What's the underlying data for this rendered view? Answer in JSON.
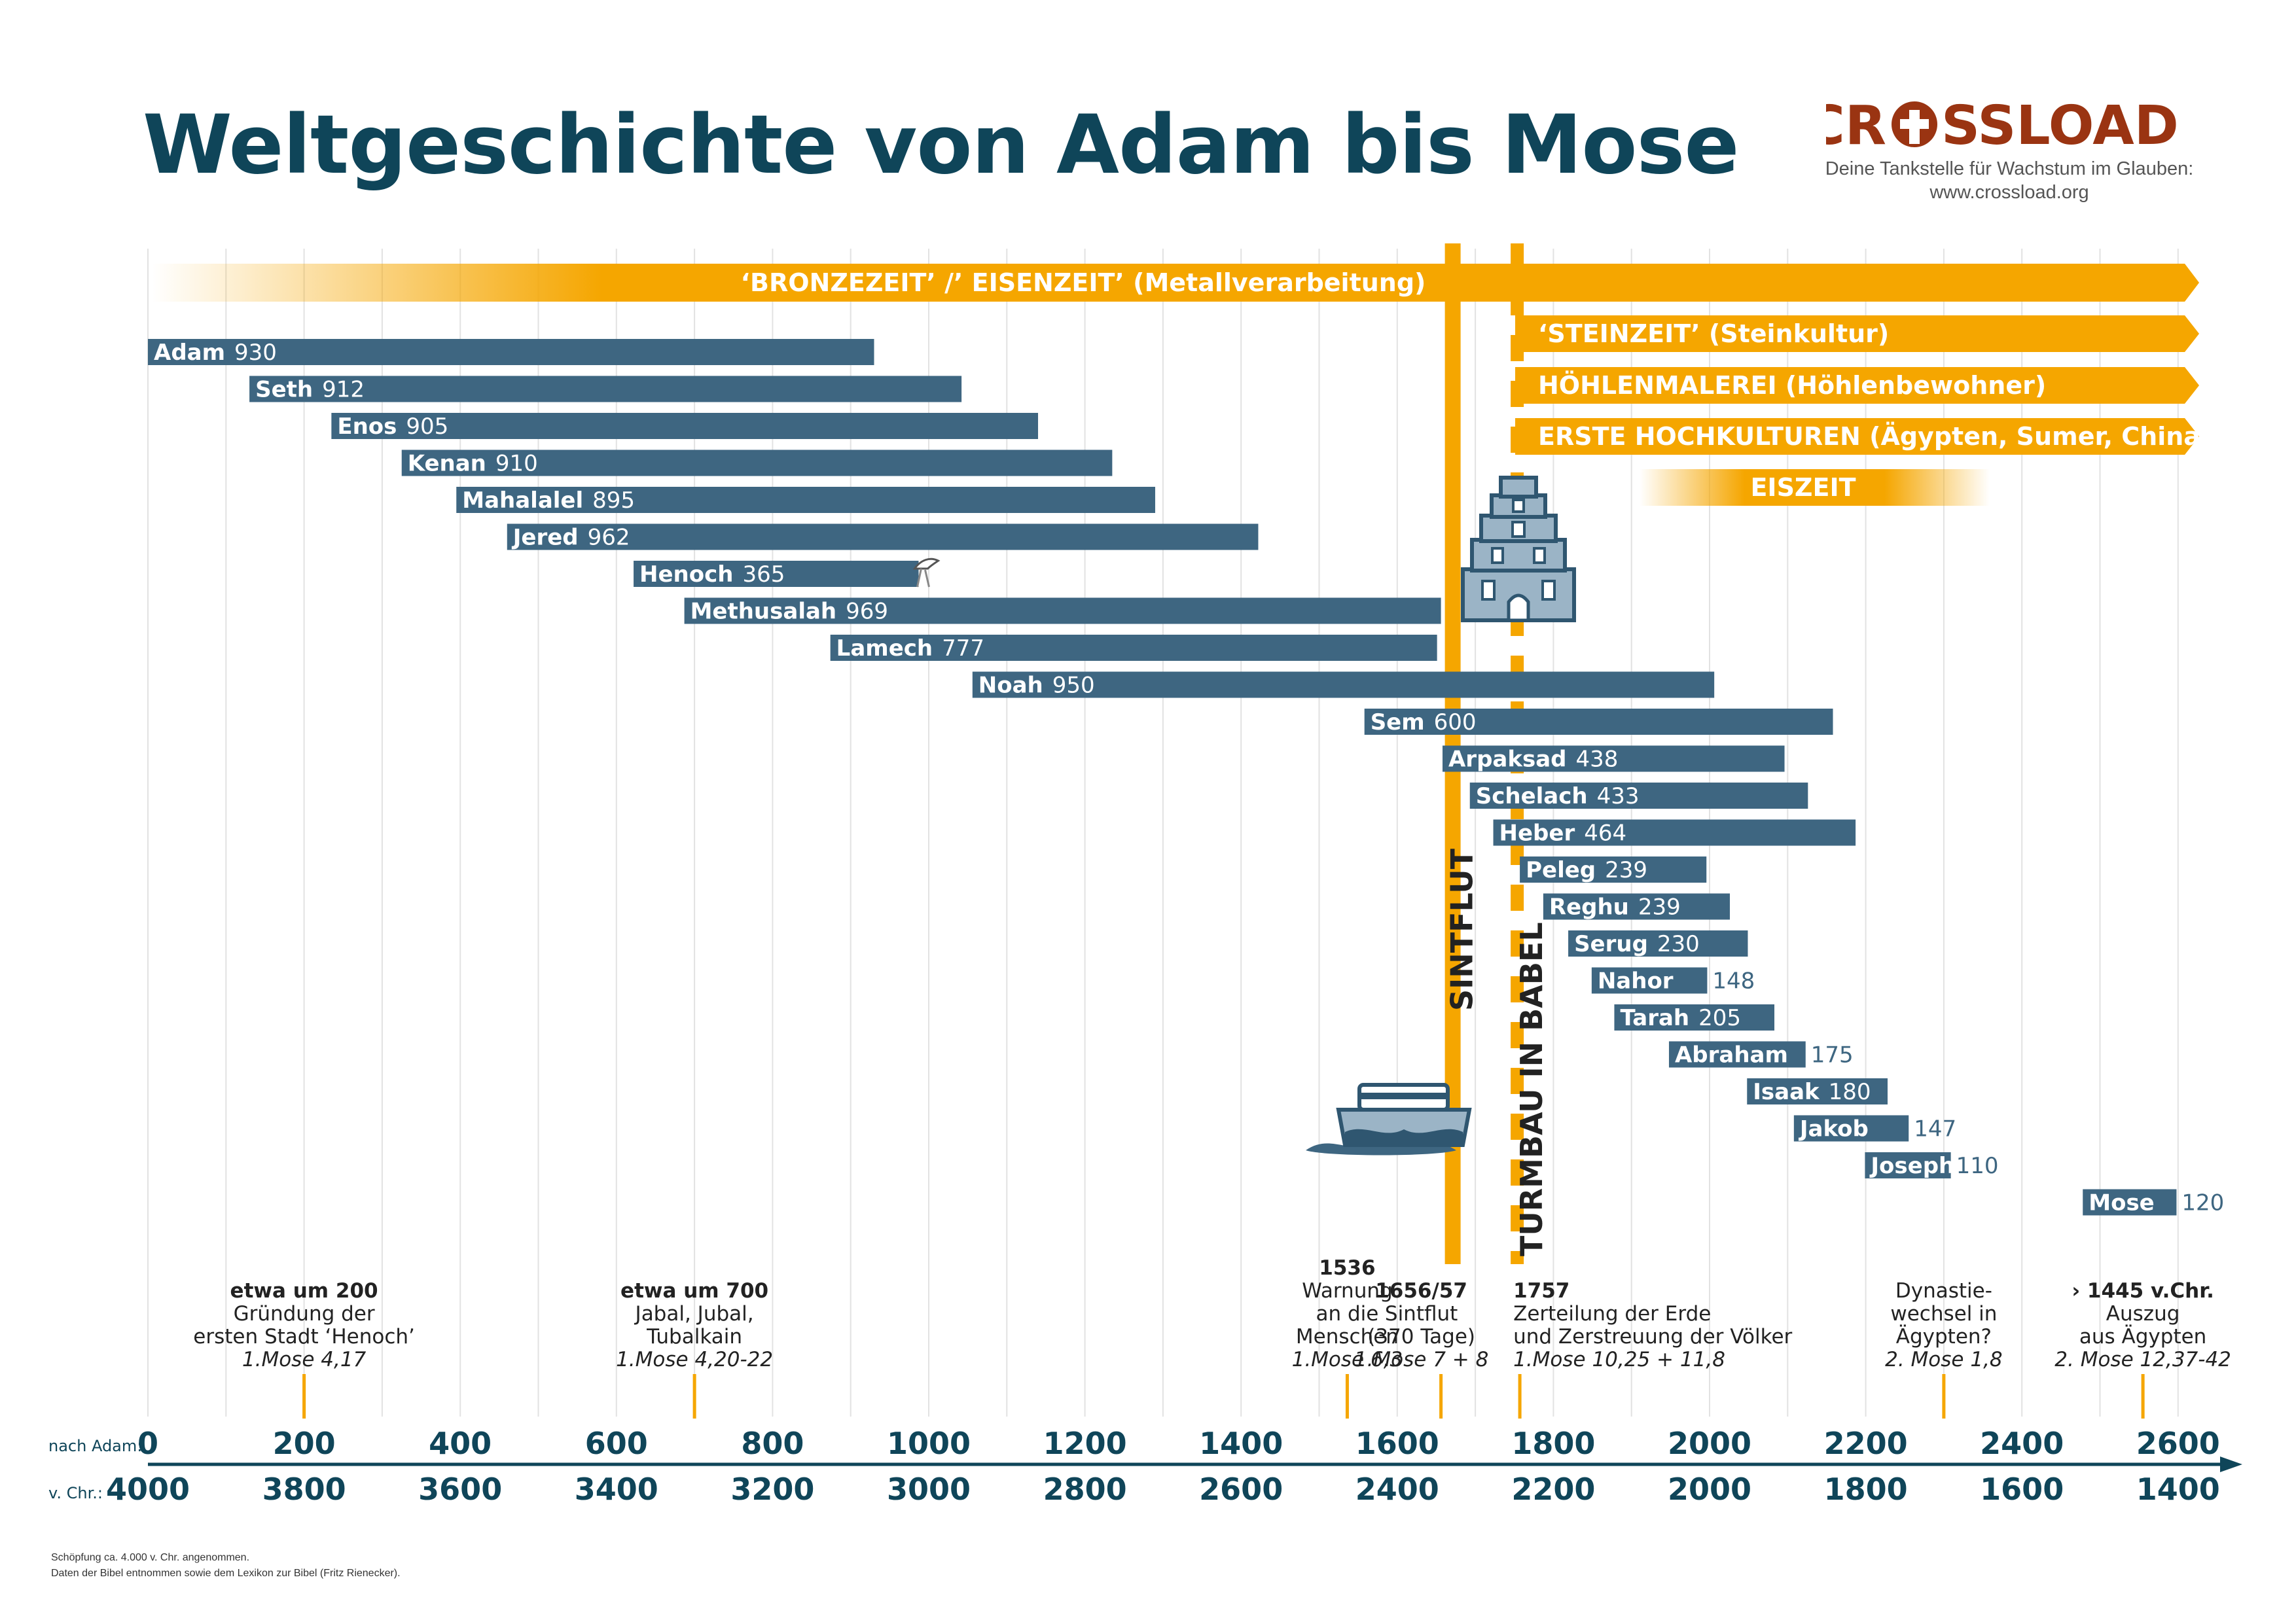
{
  "title": "Weltgeschichte von Adam bis Mose",
  "brand": {
    "name_left": "CR",
    "name_right": "SSLOAD",
    "tagline": "Deine Tankstelle für Wachstum im Glauben:",
    "url": "www.crossload.org",
    "color": "#9a3412"
  },
  "colors": {
    "bar": "#3e6681",
    "accent": "#f5a600",
    "text": "#0f4559",
    "grid": "#e2e2e2"
  },
  "icons": [
    "ship-icon",
    "tower-icon",
    "dove-icon"
  ],
  "chart_data": {
    "type": "bar",
    "orientation": "horizontal",
    "xlabel_primary": "nach Adam:",
    "xlabel_secondary": "v. Chr.:",
    "xlim": [
      0,
      2650
    ],
    "xticks_adam": [
      "0",
      "200",
      "400",
      "600",
      "800",
      "1000",
      "1200",
      "1400",
      "1600",
      "1800",
      "2000",
      "2200",
      "2400",
      "2600"
    ],
    "xticks_bc": [
      "4000",
      "3800",
      "3600",
      "3400",
      "3200",
      "3000",
      "2800",
      "2600",
      "2400",
      "2200",
      "2000",
      "1800",
      "1600",
      "1400"
    ],
    "grid": true,
    "series": [
      {
        "name": "Adam",
        "start": 0,
        "lifespan": 930,
        "label": "930"
      },
      {
        "name": "Seth",
        "start": 130,
        "lifespan": 912,
        "label": "912"
      },
      {
        "name": "Enos",
        "start": 235,
        "lifespan": 905,
        "label": "905"
      },
      {
        "name": "Kenan",
        "start": 325,
        "lifespan": 910,
        "label": "910"
      },
      {
        "name": "Mahalalel",
        "start": 395,
        "lifespan": 895,
        "label": "895"
      },
      {
        "name": "Jered",
        "start": 460,
        "lifespan": 962,
        "label": "962"
      },
      {
        "name": "Henoch",
        "start": 622,
        "lifespan": 365,
        "label": "365"
      },
      {
        "name": "Methusalah",
        "start": 687,
        "lifespan": 969,
        "label": "969"
      },
      {
        "name": "Lamech",
        "start": 874,
        "lifespan": 777,
        "label": "777"
      },
      {
        "name": "Noah",
        "start": 1056,
        "lifespan": 950,
        "label": "950"
      },
      {
        "name": "Sem",
        "start": 1558,
        "lifespan": 600,
        "label": "600"
      },
      {
        "name": "Arpaksad",
        "start": 1658,
        "lifespan": 438,
        "label": "438"
      },
      {
        "name": "Schelach",
        "start": 1693,
        "lifespan": 433,
        "label": "433"
      },
      {
        "name": "Heber",
        "start": 1723,
        "lifespan": 464,
        "label": "464"
      },
      {
        "name": "Peleg",
        "start": 1757,
        "lifespan": 239,
        "label": "239"
      },
      {
        "name": "Reghu",
        "start": 1787,
        "lifespan": 239,
        "label": "239"
      },
      {
        "name": "Serug",
        "start": 1819,
        "lifespan": 230,
        "label": "230"
      },
      {
        "name": "Nahor",
        "start": 1849,
        "lifespan": 148,
        "label": "148"
      },
      {
        "name": "Tarah",
        "start": 1878,
        "lifespan": 205,
        "label": "205"
      },
      {
        "name": "Abraham",
        "start": 1948,
        "lifespan": 175,
        "label": "175"
      },
      {
        "name": "Isaak",
        "start": 2048,
        "lifespan": 180,
        "label": "180"
      },
      {
        "name": "Jakob",
        "start": 2108,
        "lifespan": 147,
        "label": "147"
      },
      {
        "name": "Joseph",
        "start": 2199,
        "lifespan": 110,
        "label": "110"
      },
      {
        "name": "Mose",
        "start": 2478,
        "lifespan": 120,
        "label": "120"
      }
    ],
    "eras": [
      {
        "label": "‘BRONZEZEIT’ /’ EISENZEIT’ (Metallverarbeitung)",
        "start": 0,
        "end": 2600
      },
      {
        "label": "‘STEINZEIT’ (Steinkultur)",
        "start": 1757,
        "end": 2600
      },
      {
        "label": "HÖHLENMALEREI (Höhlenbewohner)",
        "start": 1757,
        "end": 2600
      },
      {
        "label": "ERSTE HOCHKULTUREN (Ägypten, Sumer, China)",
        "start": 1757,
        "end": 2600
      },
      {
        "label": "EISZEIT",
        "start": 1920,
        "end": 2350
      }
    ],
    "events_vertical": [
      {
        "label": "SINTFLUT",
        "year": 1656
      },
      {
        "label": "TURMBAU IN BABEL",
        "year": 1757
      }
    ],
    "annotations": [
      {
        "year": 200,
        "lines": [
          {
            "t": "etwa um 200",
            "s": "b"
          },
          {
            "t": "Gründung der",
            "s": "n"
          },
          {
            "t": "ersten Stadt ‘Henoch’",
            "s": "n"
          },
          {
            "t": "1.Mose 4,17",
            "s": "i"
          }
        ]
      },
      {
        "year": 700,
        "lines": [
          {
            "t": "etwa um 700",
            "s": "b"
          },
          {
            "t": "Jabal, Jubal,",
            "s": "n"
          },
          {
            "t": "Tubalkain",
            "s": "n"
          },
          {
            "t": "1.Mose 4,20-22",
            "s": "i"
          }
        ]
      },
      {
        "year": 1536,
        "lines": [
          {
            "t": "1536",
            "s": "b"
          },
          {
            "t": "Warnung",
            "s": "n"
          },
          {
            "t": "an die",
            "s": "n"
          },
          {
            "t": "Menschen",
            "s": "n"
          },
          {
            "t": "1.Mose 6,3",
            "s": "i"
          }
        ]
      },
      {
        "year": 1656,
        "lines": [
          {
            "t": "1656/57",
            "s": "b"
          },
          {
            "t": "Sintflut",
            "s": "n"
          },
          {
            "t": "(370 Tage)",
            "s": "n"
          },
          {
            "t": "1.Mose 7 + 8",
            "s": "i"
          }
        ]
      },
      {
        "year": 1757,
        "lines": [
          {
            "t": "1757",
            "s": "b"
          },
          {
            "t": "Zerteilung der Erde",
            "s": "n"
          },
          {
            "t": "und Zerstreuung der Völker",
            "s": "n"
          },
          {
            "t": "1.Mose 10,25 + 11,8",
            "s": "i"
          }
        ]
      },
      {
        "year": 2300,
        "lines": [
          {
            "t": "Dynastie-",
            "s": "n"
          },
          {
            "t": "wechsel in",
            "s": "n"
          },
          {
            "t": "Ägypten?",
            "s": "n"
          },
          {
            "t": "2. Mose 1,8",
            "s": "i"
          }
        ]
      },
      {
        "year": 2555,
        "lines": [
          {
            "t": "› 1445 v.Chr.",
            "s": "b"
          },
          {
            "t": "Auszug",
            "s": "n"
          },
          {
            "t": "aus Ägypten",
            "s": "n"
          },
          {
            "t": "2. Mose 12,37-42",
            "s": "i"
          }
        ]
      }
    ]
  },
  "footnotes": [
    "Schöpfung ca. 4.000 v. Chr. angenommen.",
    "Daten der Bibel entnommen sowie dem Lexikon zur Bibel (Fritz Rienecker)."
  ]
}
